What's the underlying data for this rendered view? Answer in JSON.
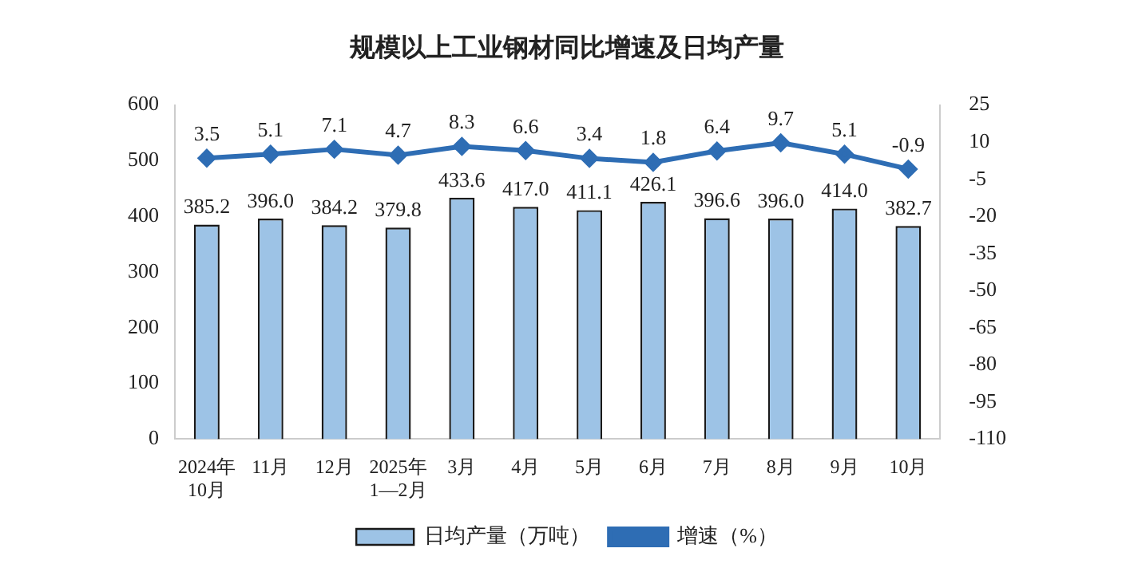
{
  "chart_data": {
    "type": "bar",
    "title": "规模以上工业钢材同比增速及日均产量",
    "categories": [
      "2024年\n10月",
      "11月",
      "12月",
      "2025年\n1—2月",
      "3月",
      "4月",
      "5月",
      "6月",
      "7月",
      "8月",
      "9月",
      "10月"
    ],
    "series": [
      {
        "name": "日均产量（万吨）",
        "color": "#9dc3e6",
        "values": [
          385.2,
          396.0,
          384.2,
          379.8,
          433.6,
          417.0,
          411.1,
          426.1,
          396.6,
          396.0,
          414.0,
          382.7
        ],
        "value_labels": [
          "385.2",
          "396.0",
          "384.2",
          "379.8",
          "433.6",
          "417.0",
          "411.1",
          "426.1",
          "396.6",
          "396.0",
          "414.0",
          "382.7"
        ]
      },
      {
        "name": "增速（%）",
        "type": "line",
        "axis": "y2",
        "color": "#2e6db4",
        "values": [
          3.5,
          5.1,
          7.1,
          4.7,
          8.3,
          6.6,
          3.4,
          1.8,
          6.4,
          9.7,
          5.1,
          -0.9
        ],
        "value_labels": [
          "3.5",
          "5.1",
          "7.1",
          "4.7",
          "8.3",
          "6.6",
          "3.4",
          "1.8",
          "6.4",
          "9.7",
          "5.1",
          "-0.9"
        ]
      }
    ],
    "ylim": [
      0,
      600
    ],
    "yticks": [
      0,
      100,
      200,
      300,
      400,
      500,
      600
    ],
    "y2lim": [
      -110,
      25
    ],
    "y2ticks": [
      -110,
      -95,
      -80,
      -65,
      -50,
      -35,
      -20,
      -5,
      10,
      25
    ],
    "grid": false,
    "legend": "bottom",
    "marker": "diamond",
    "line_style": "solid"
  }
}
